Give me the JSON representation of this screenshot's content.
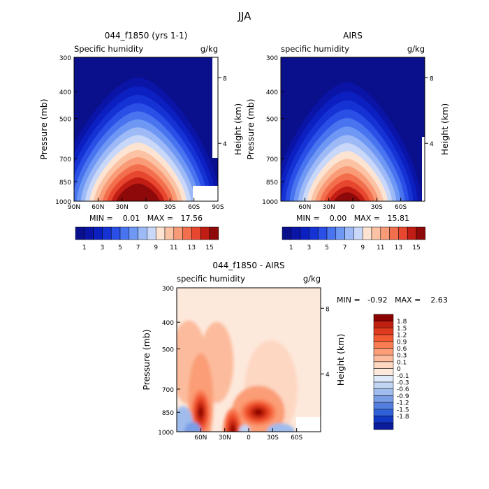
{
  "figure": {
    "title": "JJA"
  },
  "colors": {
    "absolute_palette": [
      "#0a0f8c",
      "#0a14a6",
      "#0c1fc0",
      "#1533d4",
      "#2a4fe6",
      "#4874f0",
      "#6f98f5",
      "#9dbaf7",
      "#c9d8f8",
      "#fde4d2",
      "#fbc2a4",
      "#f99b77",
      "#f36e4c",
      "#e7472e",
      "#c21d14",
      "#8e0a0a"
    ],
    "diff_palette": [
      "#8b0000",
      "#c0200f",
      "#e03a1e",
      "#f25a34",
      "#f97c52",
      "#fb9d76",
      "#fcbb9c",
      "#fdd7c2",
      "#fde9dc",
      "#dfeaf9",
      "#c0d4f4",
      "#9fbced",
      "#7a9ee6",
      "#557fde",
      "#3060d6",
      "#1038c2",
      "#0a1c9c"
    ]
  },
  "chart_data": [
    {
      "type": "heatmap",
      "title": "044_f1850 (yrs 1-1)",
      "left_label": "Specific humidity",
      "right_label": "g/kg",
      "ylabel": "Pressure (mb)",
      "ylabel_right": "Height (km)",
      "x_ticks": [
        "90N",
        "60N",
        "30N",
        "0",
        "30S",
        "60S",
        "90S"
      ],
      "y_ticks": [
        "300",
        "400",
        "500",
        "700",
        "850",
        "1000"
      ],
      "height_ticks": [
        "8",
        "4"
      ],
      "stats_text": "MIN =    0.01   MAX =   17.56",
      "min": 0.01,
      "max": 17.56,
      "colorbar_labels": [
        "1",
        "3",
        "5",
        "7",
        "9",
        "11",
        "13",
        "15"
      ],
      "levels": [
        1,
        2,
        3,
        4,
        5,
        6,
        7,
        8,
        9,
        10,
        11,
        12,
        13,
        14,
        15
      ],
      "peak": {
        "lat": 10,
        "pressure": 1000,
        "value": 17.56
      }
    },
    {
      "type": "heatmap",
      "title": "AIRS",
      "left_label": "specific humidity",
      "right_label": "g/kg",
      "ylabel": "Pressure (mb)",
      "ylabel_right": "Height (km)",
      "x_ticks": [
        "60N",
        "30N",
        "0",
        "30S",
        "60S"
      ],
      "y_ticks": [
        "300",
        "400",
        "500",
        "700",
        "850",
        "1000"
      ],
      "height_ticks": [
        "8",
        "4"
      ],
      "stats_text": "MIN =    0.00   MAX =   15.81",
      "min": 0.0,
      "max": 15.81,
      "colorbar_labels": [
        "1",
        "3",
        "5",
        "7",
        "9",
        "11",
        "13",
        "15"
      ],
      "levels": [
        1,
        2,
        3,
        4,
        5,
        6,
        7,
        8,
        9,
        10,
        11,
        12,
        13,
        14,
        15
      ],
      "peak": {
        "lat": 7,
        "pressure": 1000,
        "value": 15.81
      }
    },
    {
      "type": "heatmap",
      "title": "044_f1850 - AIRS",
      "left_label": "specific humidity",
      "right_label": "g/kg",
      "ylabel": "Pressure (mb)",
      "ylabel_right": "Height (km)",
      "x_ticks": [
        "60N",
        "30N",
        "0",
        "30S",
        "60S"
      ],
      "y_ticks": [
        "300",
        "400",
        "500",
        "700",
        "850",
        "1000"
      ],
      "height_ticks": [
        "8",
        "4"
      ],
      "stats_text": "MIN =   -0.92   MAX =    2.63",
      "min": -0.92,
      "max": 2.63,
      "colorbar_labels": [
        "1.8",
        "1.5",
        "1.2",
        "0.9",
        "0.6",
        "0.3",
        "0.1",
        "0",
        "-0.1",
        "-0.3",
        "-0.6",
        "-0.9",
        "-1.2",
        "-1.5",
        "-1.8"
      ],
      "levels": [
        1.8,
        1.5,
        1.2,
        0.9,
        0.6,
        0.3,
        0.1,
        0,
        -0.1,
        -0.3,
        -0.6,
        -0.9,
        -1.2,
        -1.5,
        -1.8
      ],
      "maxima": [
        {
          "lat": 60,
          "pressure": 850,
          "value": 2.4
        },
        {
          "lat": -12,
          "pressure": 850,
          "value": 2.63
        },
        {
          "lat": 20,
          "pressure": 990,
          "value": 2.0
        }
      ]
    }
  ]
}
